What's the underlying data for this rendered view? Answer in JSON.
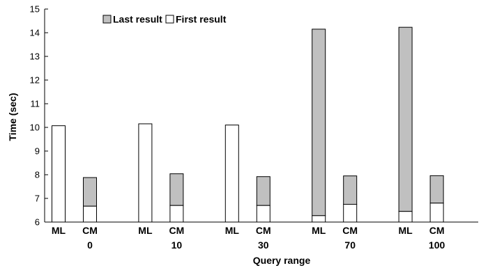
{
  "chart_data": {
    "type": "bar",
    "stacked": true,
    "xlabel": "Query range",
    "ylabel": "Time (sec)",
    "ylim": [
      6,
      15
    ],
    "yticks": [
      6,
      7,
      8,
      9,
      10,
      11,
      12,
      13,
      14,
      15
    ],
    "grid": false,
    "legend_position": "top-left",
    "series": [
      {
        "name": "Last result",
        "color": "#c0c0c0"
      },
      {
        "name": "First result",
        "color": "#ffffff"
      }
    ],
    "groups": [
      {
        "label": "0",
        "bars": [
          {
            "label": "ML",
            "first": 10.07,
            "last": 10.07
          },
          {
            "label": "CM",
            "first": 6.67,
            "last": 7.88
          }
        ]
      },
      {
        "label": "10",
        "bars": [
          {
            "label": "ML",
            "first": 10.15,
            "last": 10.15
          },
          {
            "label": "CM",
            "first": 6.7,
            "last": 8.04
          }
        ]
      },
      {
        "label": "30",
        "bars": [
          {
            "label": "ML",
            "first": 10.1,
            "last": 10.1
          },
          {
            "label": "CM",
            "first": 6.7,
            "last": 7.92
          }
        ]
      },
      {
        "label": "70",
        "bars": [
          {
            "label": "ML",
            "first": 6.27,
            "last": 14.15
          },
          {
            "label": "CM",
            "first": 6.75,
            "last": 7.95
          }
        ]
      },
      {
        "label": "100",
        "bars": [
          {
            "label": "ML",
            "first": 6.45,
            "last": 14.23
          },
          {
            "label": "CM",
            "first": 6.8,
            "last": 7.96
          }
        ]
      }
    ]
  }
}
